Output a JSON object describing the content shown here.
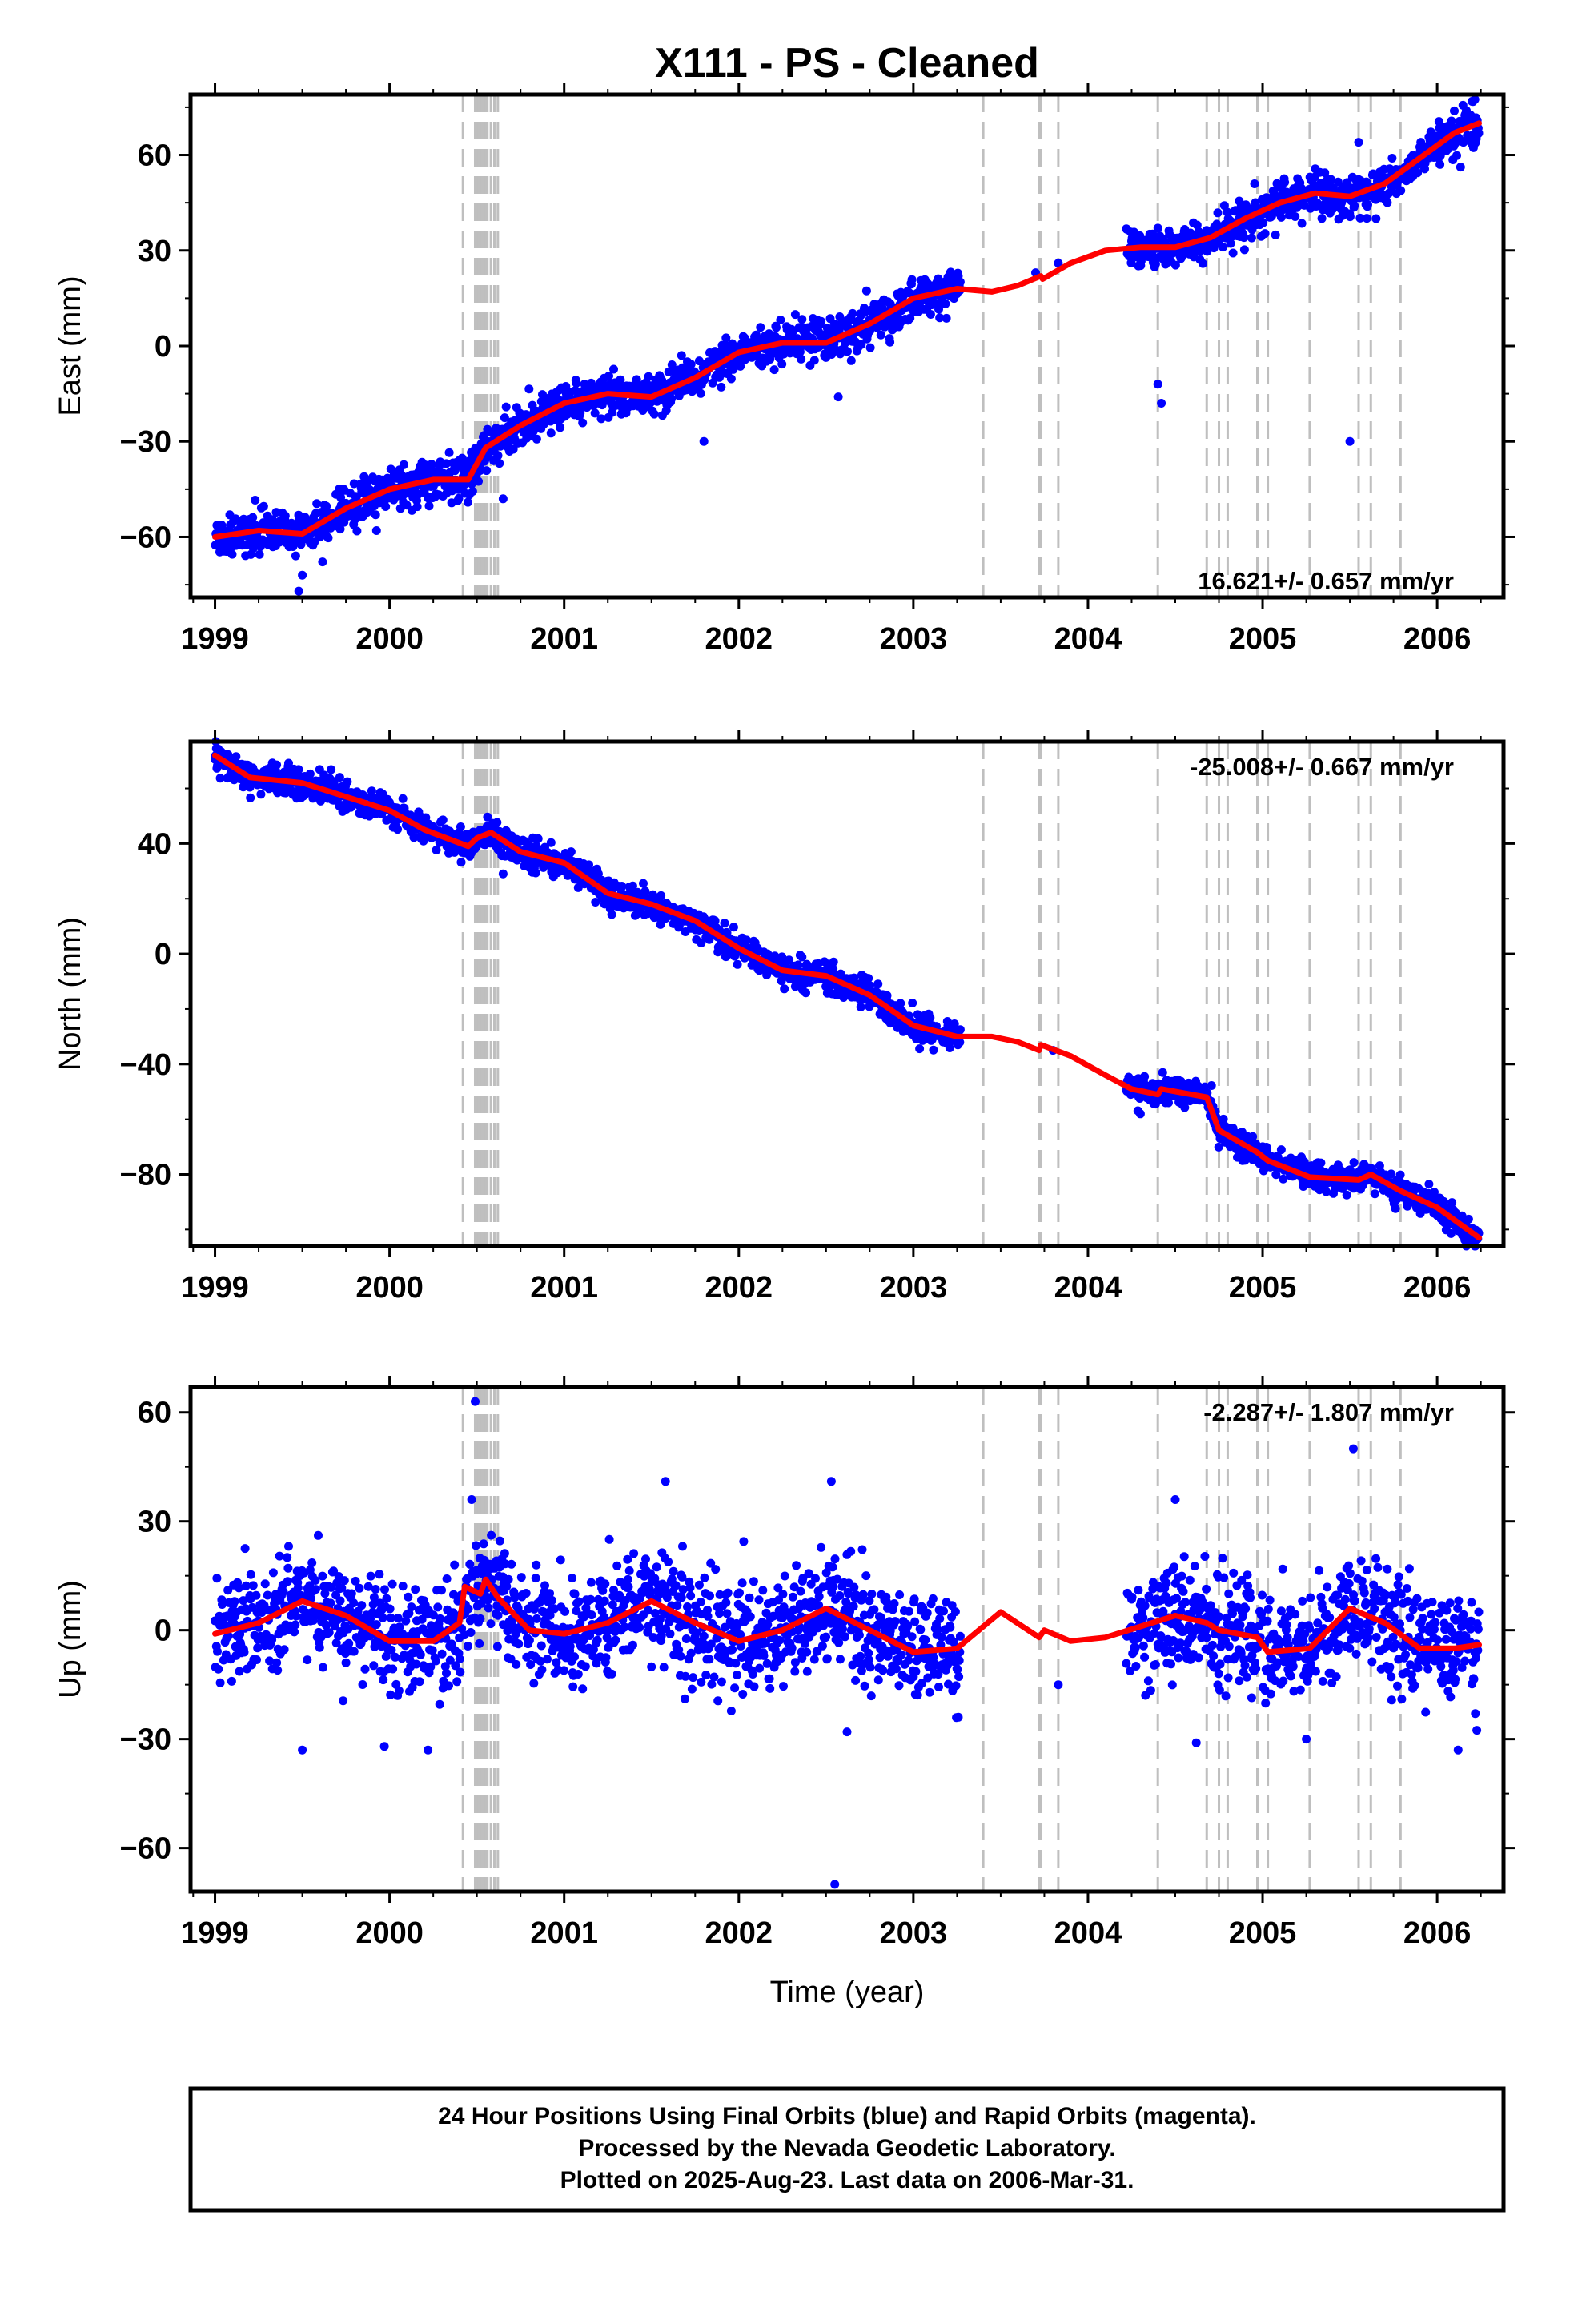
{
  "title": "X111  - PS - Cleaned",
  "xlabel": "Time (year)",
  "footer": {
    "line1": "24 Hour Positions Using Final Orbits (blue) and Rapid Orbits (magenta).",
    "line2": "Processed by the Nevada Geodetic Laboratory.",
    "line3": "Plotted on 2025-Aug-23. Last data on 2006-Mar-31."
  },
  "colors": {
    "points": "#0000ff",
    "model": "#ff0000",
    "offset_lines": "#bfbfbf",
    "frame": "#000000"
  },
  "chart_data": [
    {
      "type": "scatter",
      "component": "east",
      "ylabel": "East (mm)",
      "rate_text": "16.621+/- 0.657 mm/yr",
      "xlim": [
        1998.86,
        2006.38
      ],
      "ylim": [
        -79,
        79
      ],
      "xticks": [
        1999,
        2000,
        2001,
        2002,
        2003,
        2004,
        2005,
        2006
      ],
      "yticks": [
        -60,
        -30,
        0,
        30,
        60
      ],
      "model_x": [
        1999.0,
        1999.25,
        1999.5,
        1999.75,
        2000.0,
        2000.25,
        2000.45,
        2000.55,
        2000.75,
        2001.0,
        2001.25,
        2001.5,
        2001.75,
        2002.0,
        2002.25,
        2002.5,
        2002.75,
        2003.0,
        2003.25,
        2003.45,
        2003.6,
        2003.73,
        2003.74,
        2003.9,
        2004.1,
        2004.3,
        2004.5,
        2004.7,
        2004.9,
        2005.1,
        2005.3,
        2005.5,
        2005.7,
        2005.9,
        2006.1,
        2006.24
      ],
      "model_y": [
        -60,
        -58,
        -59,
        -51,
        -45,
        -42,
        -42,
        -32,
        -25,
        -18,
        -15,
        -16,
        -10,
        -2,
        1,
        1,
        7,
        15,
        18,
        17,
        19,
        22,
        21,
        26,
        30,
        31,
        31,
        34,
        40,
        45,
        48,
        47,
        51,
        59,
        67,
        70
      ],
      "point_segments": [
        {
          "start": 1999.0,
          "end": 2003.27
        },
        {
          "start": 2004.22,
          "end": 2006.24
        }
      ],
      "scatter_sd": 3.2,
      "outlier_points": [
        [
          1999.48,
          -77
        ],
        [
          1999.5,
          -72
        ],
        [
          2000.65,
          -48
        ],
        [
          2001.8,
          -30
        ],
        [
          2002.57,
          -16
        ],
        [
          2004.4,
          -12
        ],
        [
          2004.42,
          -18
        ],
        [
          2005.5,
          -30
        ],
        [
          2005.55,
          64
        ],
        [
          2005.65,
          40
        ],
        [
          2003.7,
          23
        ],
        [
          2003.83,
          26
        ]
      ],
      "offset_epochs": [
        2000.42,
        2000.49,
        2000.5,
        2000.51,
        2000.52,
        2000.53,
        2000.54,
        2000.55,
        2000.56,
        2000.58,
        2000.6,
        2000.62,
        2003.4,
        2003.72,
        2003.73,
        2003.83,
        2004.4,
        2004.68,
        2004.75,
        2004.8,
        2004.97,
        2005.03,
        2005.27,
        2005.55,
        2005.62,
        2005.79
      ]
    },
    {
      "type": "scatter",
      "component": "north",
      "ylabel": "North (mm)",
      "rate_text": "-25.008+/- 0.667 mm/yr",
      "xlim": [
        1998.86,
        2006.38
      ],
      "ylim": [
        -106,
        77
      ],
      "xticks": [
        1999,
        2000,
        2001,
        2002,
        2003,
        2004,
        2005,
        2006
      ],
      "yticks": [
        -80,
        -40,
        0,
        40
      ],
      "model_x": [
        1999.0,
        1999.2,
        1999.5,
        1999.8,
        2000.0,
        2000.2,
        2000.45,
        2000.5,
        2000.58,
        2000.75,
        2001.0,
        2001.25,
        2001.5,
        2001.75,
        2002.0,
        2002.25,
        2002.5,
        2002.75,
        2003.0,
        2003.25,
        2003.45,
        2003.6,
        2003.72,
        2003.73,
        2003.9,
        2004.1,
        2004.25,
        2004.4,
        2004.42,
        2004.68,
        2004.75,
        2004.97,
        2005.03,
        2005.27,
        2005.55,
        2005.62,
        2005.79,
        2006.0,
        2006.24
      ],
      "model_y": [
        72,
        64,
        62,
        56,
        52,
        45,
        39,
        42,
        44,
        37,
        33,
        22,
        18,
        12,
        2,
        -6,
        -8,
        -15,
        -26,
        -30,
        -30,
        -32,
        -35,
        -33,
        -37,
        -44,
        -49,
        -51,
        -49,
        -52,
        -64,
        -72,
        -75,
        -81,
        -82,
        -80,
        -86,
        -92,
        -103
      ],
      "point_segments": [
        {
          "start": 1999.0,
          "end": 2003.27
        },
        {
          "start": 2004.22,
          "end": 2006.24
        }
      ],
      "scatter_sd": 2.6,
      "outlier_points": [
        [
          2000.65,
          29
        ],
        [
          2003.8,
          -35
        ],
        [
          2004.3,
          -58
        ]
      ],
      "offset_epochs": [
        2000.42,
        2000.49,
        2000.5,
        2000.51,
        2000.52,
        2000.53,
        2000.54,
        2000.55,
        2000.56,
        2000.58,
        2000.6,
        2000.62,
        2003.4,
        2003.72,
        2003.73,
        2003.83,
        2004.4,
        2004.68,
        2004.75,
        2004.8,
        2004.97,
        2005.03,
        2005.27,
        2005.55,
        2005.62,
        2005.79
      ]
    },
    {
      "type": "scatter",
      "component": "up",
      "ylabel": "Up (mm)",
      "rate_text": "-2.287+/- 1.807 mm/yr",
      "xlim": [
        1998.86,
        2006.38
      ],
      "ylim": [
        -72,
        67
      ],
      "xticks": [
        1999,
        2000,
        2001,
        2002,
        2003,
        2004,
        2005,
        2006
      ],
      "yticks": [
        -60,
        -30,
        0,
        30,
        60
      ],
      "model_x": [
        1999.0,
        1999.25,
        1999.5,
        1999.75,
        2000.0,
        2000.25,
        2000.4,
        2000.43,
        2000.52,
        2000.55,
        2000.62,
        2000.8,
        2001.0,
        2001.25,
        2001.5,
        2001.75,
        2002.0,
        2002.25,
        2002.5,
        2002.75,
        2003.0,
        2003.25,
        2003.5,
        2003.72,
        2003.75,
        2003.9,
        2004.1,
        2004.3,
        2004.5,
        2004.68,
        2004.75,
        2004.97,
        2005.03,
        2005.27,
        2005.5,
        2005.7,
        2005.9,
        2006.1,
        2006.24
      ],
      "model_y": [
        -1,
        2,
        8,
        4,
        -3,
        -3,
        2,
        12,
        10,
        14,
        9,
        0,
        -1,
        2,
        8,
        2,
        -3,
        0,
        6,
        0,
        -6,
        -5,
        5,
        -2,
        0,
        -3,
        -2,
        1,
        4,
        2,
        0,
        -2,
        -6,
        -5,
        6,
        2,
        -5,
        -5,
        -4
      ],
      "point_segments": [
        {
          "start": 1999.0,
          "end": 2003.27
        },
        {
          "start": 2004.22,
          "end": 2006.24
        }
      ],
      "scatter_sd": 7.5,
      "outlier_points": [
        [
          2000.49,
          63
        ],
        [
          2000.47,
          36
        ],
        [
          2001.58,
          41
        ],
        [
          2002.53,
          41
        ],
        [
          2004.5,
          36
        ],
        [
          2005.52,
          50
        ],
        [
          1999.5,
          -33
        ],
        [
          1999.97,
          -32
        ],
        [
          2000.22,
          -33
        ],
        [
          2002.62,
          -28
        ],
        [
          2004.62,
          -31
        ],
        [
          2005.25,
          -30
        ],
        [
          2006.12,
          -33
        ],
        [
          2002.55,
          -70
        ],
        [
          2003.83,
          -15
        ]
      ],
      "offset_epochs": [
        2000.42,
        2000.49,
        2000.5,
        2000.51,
        2000.52,
        2000.53,
        2000.54,
        2000.55,
        2000.56,
        2000.58,
        2000.6,
        2000.62,
        2003.4,
        2003.72,
        2003.73,
        2003.83,
        2004.4,
        2004.68,
        2004.75,
        2004.8,
        2004.97,
        2005.03,
        2005.27,
        2005.55,
        2005.62,
        2005.79
      ]
    }
  ]
}
